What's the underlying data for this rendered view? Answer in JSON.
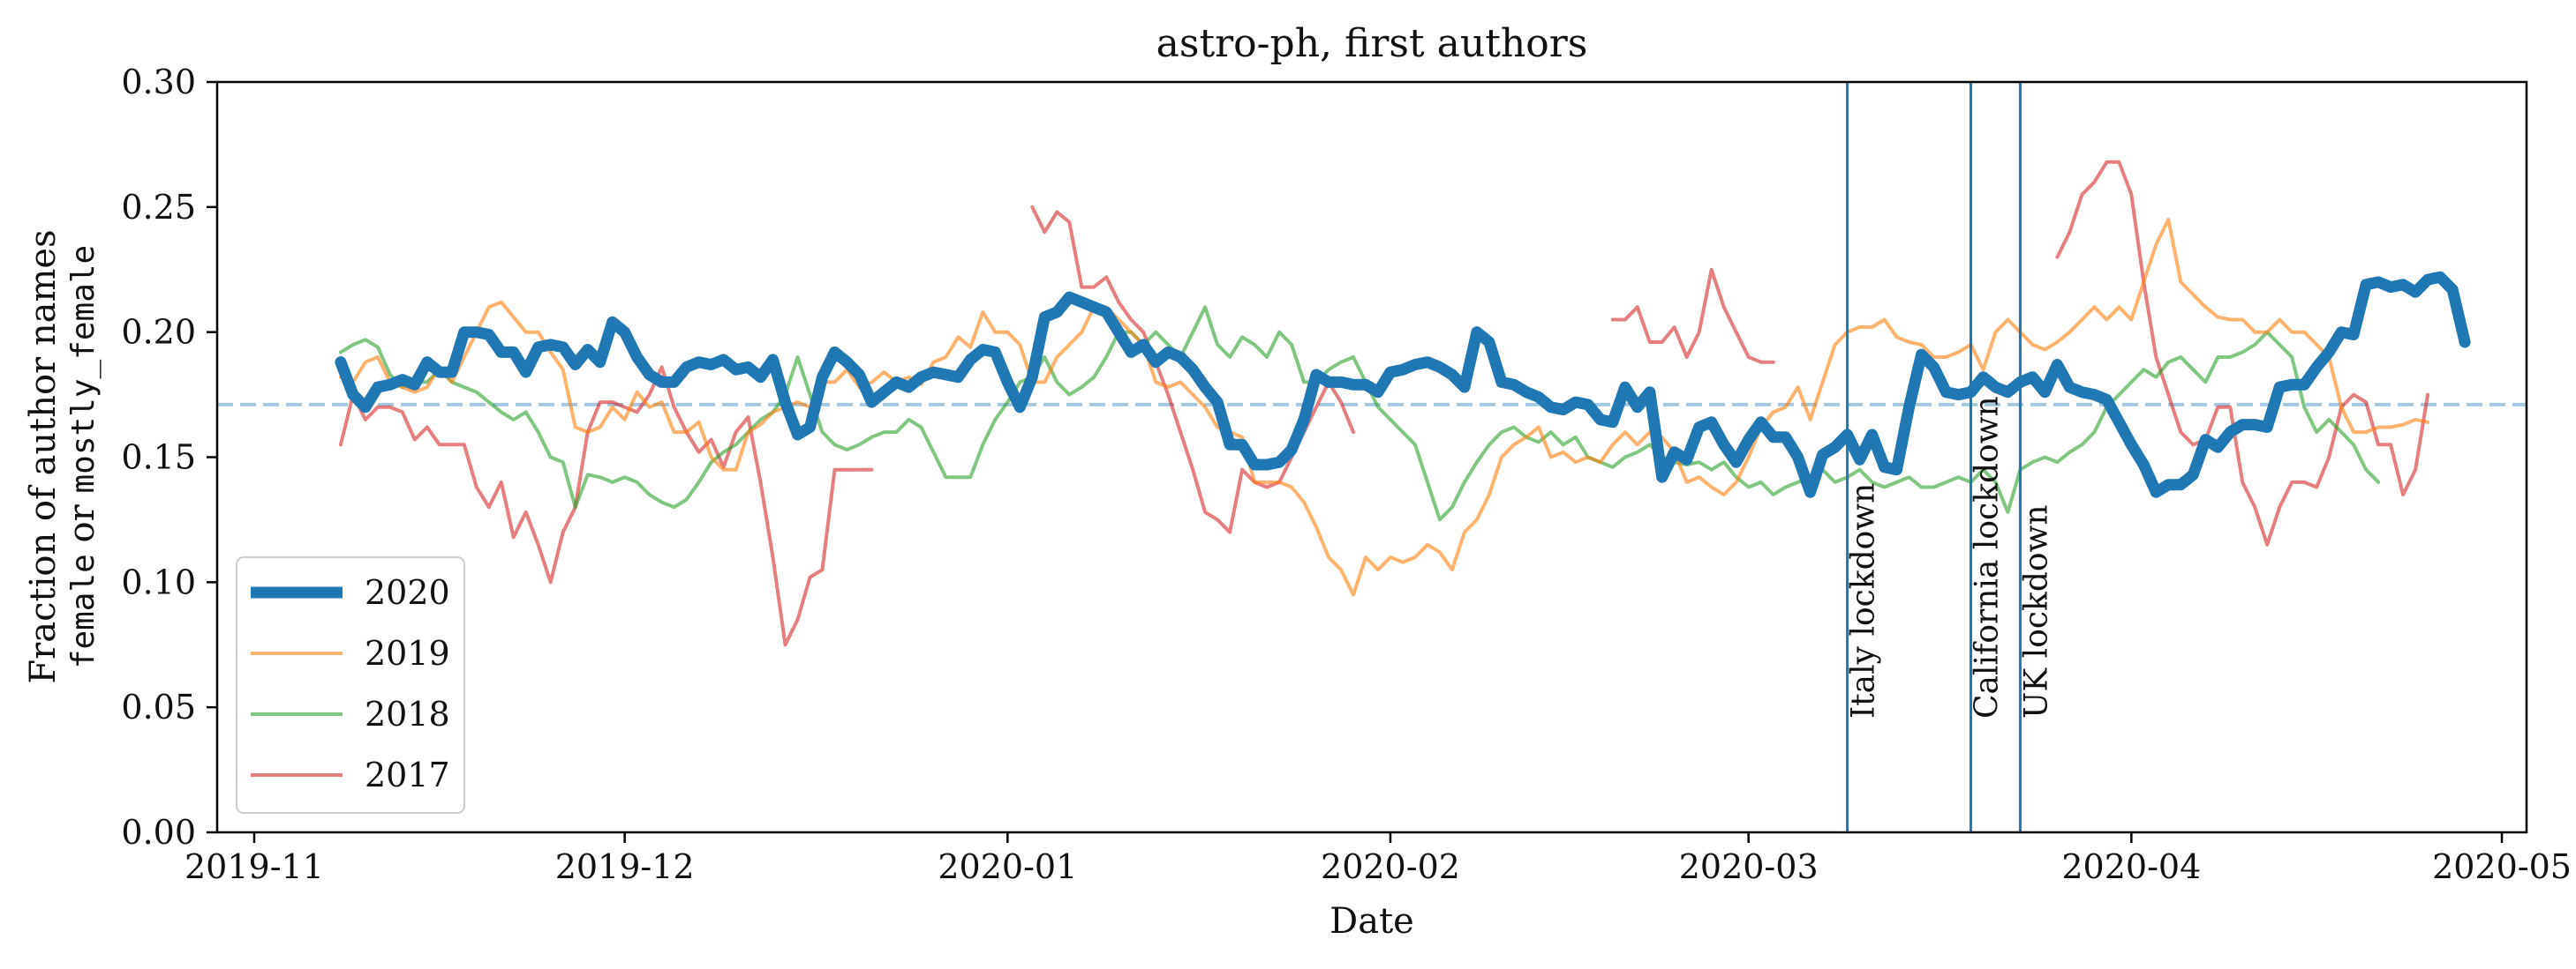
{
  "chart_data": {
    "type": "line",
    "title": "astro-ph, first authors",
    "xlabel": "Date",
    "ylabel_parts": [
      "Fraction of author names",
      "female",
      " or ",
      "mostly_female"
    ],
    "x_ticks": [
      "2019-11",
      "2019-12",
      "2020-01",
      "2020-02",
      "2020-03",
      "2020-04",
      "2020-05"
    ],
    "y_ticks": [
      "0.00",
      "0.05",
      "0.10",
      "0.15",
      "0.20",
      "0.25",
      "0.30"
    ],
    "xlim": [
      "2019-10-29",
      "2020-05-03"
    ],
    "ylim": [
      0,
      0.3
    ],
    "grid": false,
    "legend_position": "lower-left",
    "baseline": {
      "value": 0.171,
      "style": "dashed",
      "color": "#1f77b4"
    },
    "annotations": [
      {
        "date": "2020-03-09",
        "label": "Italy lockdown"
      },
      {
        "date": "2020-03-19",
        "label": "California lockdown"
      },
      {
        "date": "2020-03-23",
        "label": "UK lockdown"
      }
    ],
    "series": [
      {
        "name": "2020",
        "color": "#1f77b4",
        "width": 13,
        "opacity": 1,
        "segments": [
          {
            "start": "2019-11-08",
            "values": [
              0.188,
              0.175,
              0.17,
              0.178,
              0.179,
              0.181,
              0.179,
              0.188,
              0.184,
              0.184,
              0.2,
              0.2,
              0.199,
              0.192,
              0.192,
              0.184,
              0.194,
              0.195,
              0.194,
              0.187,
              0.193,
              0.188,
              0.204,
              0.2,
              0.19,
              0.183,
              0.18,
              0.18,
              0.186,
              0.188,
              0.187,
              0.189,
              0.185,
              0.186,
              0.182,
              0.189,
              0.172,
              0.159,
              0.162,
              0.182,
              0.192,
              0.188,
              0.183,
              0.172,
              0.176,
              0.18,
              0.178,
              0.182,
              0.184,
              0.183,
              0.182,
              0.189,
              0.193,
              0.192,
              0.18,
              0.17,
              0.182,
              0.206,
              0.208,
              0.214,
              0.212,
              0.21,
              0.208,
              0.2,
              0.192,
              0.195,
              0.188,
              0.192,
              0.19,
              0.185,
              0.178,
              0.172,
              0.155,
              0.155,
              0.147,
              0.147,
              0.148,
              0.153,
              0.165,
              0.183,
              0.18,
              0.18,
              0.179,
              0.179,
              0.176,
              0.184,
              0.185,
              0.187,
              0.188,
              0.186,
              0.183,
              0.178,
              0.2,
              0.196,
              0.18,
              0.179,
              0.176,
              0.174,
              0.17,
              0.169,
              0.172,
              0.171,
              0.165,
              0.164,
              0.178,
              0.17,
              0.176,
              0.142,
              0.152,
              0.149,
              0.162,
              0.164,
              0.155,
              0.148,
              0.157,
              0.164,
              0.158,
              0.158,
              0.15,
              0.136,
              0.151,
              0.154,
              0.159,
              0.149,
              0.159,
              0.146,
              0.145,
              0.17,
              0.191,
              0.186,
              0.176,
              0.175,
              0.176,
              0.182,
              0.178,
              0.176,
              0.18,
              0.182,
              0.176,
              0.187,
              0.178,
              0.176,
              0.175,
              0.173,
              0.164,
              0.155,
              0.147,
              0.136,
              0.139,
              0.139,
              0.143,
              0.157,
              0.154,
              0.16,
              0.163,
              0.163,
              0.162,
              0.178,
              0.179,
              0.179,
              0.186,
              0.192,
              0.2,
              0.199,
              0.219,
              0.22,
              0.218,
              0.219,
              0.216,
              0.221,
              0.222,
              0.217,
              0.196
            ]
          }
        ]
      },
      {
        "name": "2019",
        "color": "#ff7f0e",
        "width": 4,
        "opacity": 0.6,
        "segments": [
          {
            "start": "2019-11-08",
            "values": [
              0.182,
              0.18,
              0.188,
              0.19,
              0.18,
              0.178,
              0.176,
              0.178,
              0.186,
              0.18,
              0.19,
              0.2,
              0.21,
              0.212,
              0.206,
              0.2,
              0.2,
              0.192,
              0.185,
              0.162,
              0.16,
              0.162,
              0.17,
              0.165,
              0.176,
              0.17,
              0.172,
              0.16,
              0.16,
              0.164,
              0.15,
              0.145,
              0.145,
              0.16,
              0.163,
              0.168,
              0.17,
              0.172,
              0.17,
              0.18,
              0.18,
              0.185,
              0.178,
              0.18,
              0.184,
              0.18,
              0.182,
              0.179,
              0.188,
              0.19,
              0.198,
              0.194,
              0.208,
              0.2,
              0.2,
              0.195,
              0.18,
              0.18,
              0.19,
              0.195,
              0.2,
              0.21,
              0.21,
              0.205,
              0.2,
              0.195,
              0.18,
              0.178,
              0.18,
              0.175,
              0.17,
              0.162,
              0.16,
              0.158,
              0.14,
              0.14,
              0.14,
              0.138,
              0.132,
              0.122,
              0.11,
              0.105,
              0.095,
              0.11,
              0.105,
              0.11,
              0.108,
              0.11,
              0.115,
              0.112,
              0.105,
              0.12,
              0.125,
              0.135,
              0.15,
              0.155,
              0.158,
              0.162,
              0.15,
              0.152,
              0.148,
              0.15,
              0.148,
              0.155,
              0.16,
              0.155,
              0.16,
              0.158,
              0.152,
              0.14,
              0.142,
              0.138,
              0.135,
              0.14,
              0.15,
              0.162,
              0.168,
              0.17,
              0.178,
              0.165,
              0.18,
              0.195,
              0.2,
              0.202,
              0.202,
              0.205,
              0.198,
              0.196,
              0.195,
              0.19,
              0.19,
              0.192,
              0.195,
              0.185,
              0.2,
              0.205,
              0.2,
              0.195,
              0.193,
              0.196,
              0.2,
              0.205,
              0.21,
              0.205,
              0.21,
              0.205,
              0.22,
              0.235,
              0.245,
              0.22,
              0.215,
              0.21,
              0.206,
              0.205,
              0.205,
              0.2,
              0.2,
              0.205,
              0.2,
              0.2,
              0.195,
              0.19,
              0.17,
              0.16,
              0.16,
              0.162,
              0.162,
              0.163,
              0.165,
              0.164
            ]
          }
        ]
      },
      {
        "name": "2018",
        "color": "#2ca02c",
        "width": 4,
        "opacity": 0.6,
        "segments": [
          {
            "start": "2019-11-08",
            "values": [
              0.192,
              0.195,
              0.197,
              0.194,
              0.183,
              0.178,
              0.18,
              0.18,
              0.185,
              0.18,
              0.178,
              0.176,
              0.172,
              0.168,
              0.165,
              0.168,
              0.16,
              0.15,
              0.148,
              0.13,
              0.143,
              0.142,
              0.14,
              0.142,
              0.14,
              0.135,
              0.132,
              0.13,
              0.133,
              0.14,
              0.148,
              0.152,
              0.155,
              0.16,
              0.165,
              0.168,
              0.175,
              0.19,
              0.175,
              0.16,
              0.155,
              0.153,
              0.155,
              0.158,
              0.16,
              0.16,
              0.165,
              0.162,
              0.152,
              0.142,
              0.142,
              0.142,
              0.155,
              0.165,
              0.172,
              0.18,
              0.182,
              0.19,
              0.18,
              0.175,
              0.178,
              0.182,
              0.19,
              0.2,
              0.2,
              0.195,
              0.2,
              0.195,
              0.19,
              0.2,
              0.21,
              0.195,
              0.19,
              0.198,
              0.195,
              0.19,
              0.2,
              0.195,
              0.18,
              0.18,
              0.185,
              0.188,
              0.19,
              0.18,
              0.17,
              0.165,
              0.16,
              0.155,
              0.14,
              0.125,
              0.13,
              0.14,
              0.148,
              0.155,
              0.16,
              0.162,
              0.158,
              0.156,
              0.16,
              0.155,
              0.158,
              0.15,
              0.148,
              0.146,
              0.15,
              0.152,
              0.155,
              0.15,
              0.148,
              0.147,
              0.148,
              0.145,
              0.148,
              0.142,
              0.138,
              0.14,
              0.135,
              0.138,
              0.14,
              0.142,
              0.145,
              0.14,
              0.142,
              0.145,
              0.14,
              0.138,
              0.14,
              0.142,
              0.138,
              0.138,
              0.14,
              0.142,
              0.14,
              0.145,
              0.14,
              0.128,
              0.145,
              0.148,
              0.15,
              0.148,
              0.152,
              0.155,
              0.16,
              0.17,
              0.175,
              0.18,
              0.185,
              0.182,
              0.188,
              0.19,
              0.185,
              0.18,
              0.19,
              0.19,
              0.192,
              0.195,
              0.2,
              0.195,
              0.19,
              0.17,
              0.16,
              0.165,
              0.16,
              0.155,
              0.145,
              0.14
            ]
          }
        ]
      },
      {
        "name": "2017",
        "color": "#d62728",
        "width": 4,
        "opacity": 0.6,
        "segments": [
          {
            "start": "2019-11-08",
            "values": [
              0.155,
              0.175,
              0.165,
              0.17,
              0.17,
              0.168,
              0.157,
              0.162,
              0.155,
              0.155,
              0.155,
              0.138,
              0.13,
              0.14,
              0.118,
              0.128,
              0.115,
              0.1,
              0.12,
              0.13,
              0.16,
              0.172,
              0.172,
              0.17,
              0.168,
              0.175,
              0.186,
              0.17,
              0.16,
              0.152,
              0.157,
              0.146,
              0.16,
              0.166,
              0.14,
              0.11,
              0.075,
              0.085,
              0.102,
              0.105,
              0.145,
              0.145,
              0.145,
              0.145
            ]
          },
          {
            "start": "2020-01-03",
            "values": [
              0.25,
              0.24,
              0.248,
              0.244,
              0.218,
              0.218,
              0.222,
              0.212,
              0.205,
              0.2,
              0.188,
              0.175,
              0.16,
              0.145,
              0.128,
              0.125,
              0.12,
              0.145,
              0.14,
              0.138,
              0.14,
              0.15,
              0.16,
              0.17,
              0.18,
              0.172,
              0.16
            ]
          },
          {
            "start": "2020-02-19",
            "values": [
              0.205,
              0.205,
              0.21,
              0.196,
              0.196,
              0.202,
              0.19,
              0.2,
              0.225,
              0.21,
              0.2,
              0.19,
              0.188,
              0.188
            ]
          },
          {
            "start": "2020-03-26",
            "values": [
              0.23,
              0.24,
              0.255,
              0.26,
              0.268,
              0.268,
              0.255,
              0.22,
              0.19,
              0.175,
              0.16,
              0.155,
              0.157,
              0.17,
              0.17,
              0.14,
              0.13,
              0.115,
              0.13,
              0.14,
              0.14,
              0.138,
              0.15,
              0.17,
              0.175,
              0.172,
              0.155,
              0.155,
              0.135,
              0.145,
              0.175
            ]
          }
        ]
      }
    ]
  }
}
